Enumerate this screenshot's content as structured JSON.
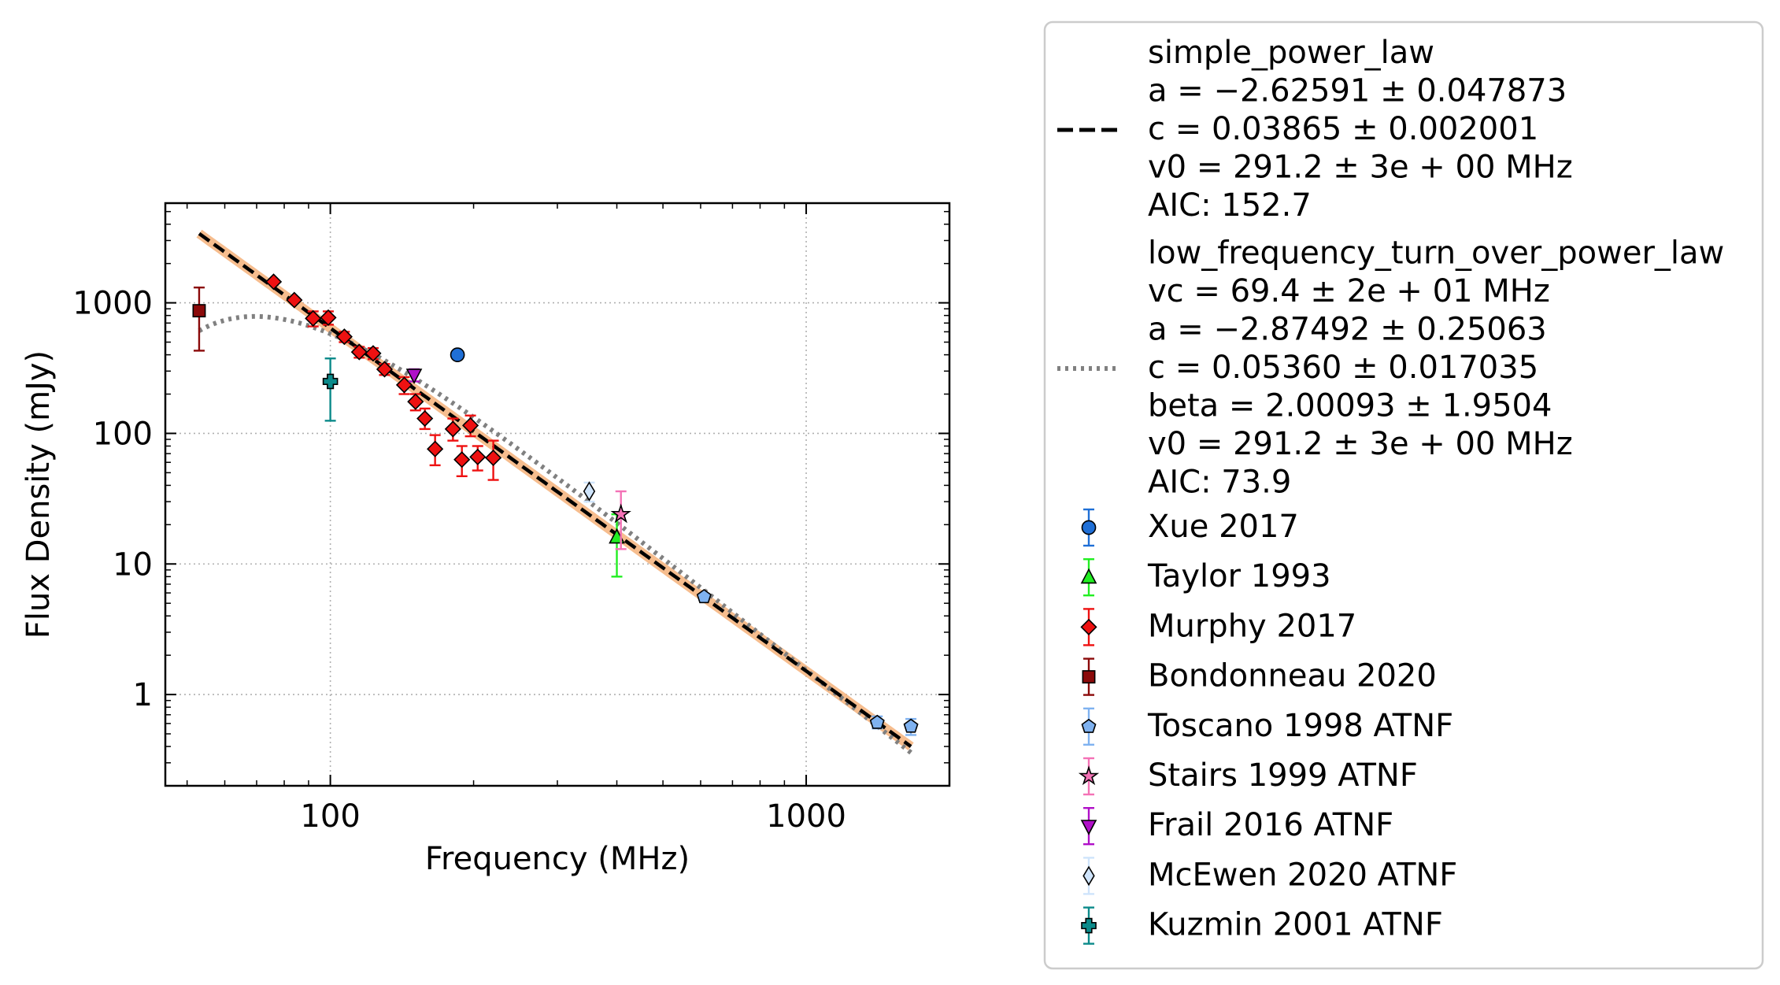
{
  "chart_data": {
    "type": "scatter",
    "xlabel": "Frequency (MHz)",
    "ylabel": "Flux Density (mJy)",
    "xscale": "log",
    "yscale": "log",
    "xlim": [
      45,
      2000
    ],
    "ylim": [
      0.2,
      5800
    ],
    "x_ticks": [
      {
        "value": 100,
        "label": "100"
      },
      {
        "value": 1000,
        "label": "1000"
      }
    ],
    "y_ticks": [
      {
        "value": 1,
        "label": "1"
      },
      {
        "value": 10,
        "label": "10"
      },
      {
        "value": 100,
        "label": "100"
      },
      {
        "value": 1000,
        "label": "1000"
      }
    ],
    "grid": true,
    "legend_position": "outside-right",
    "fits": [
      {
        "id": "simple_power_law",
        "style": "dashed",
        "color": "#000000",
        "band_color": "#f5b27a",
        "lines": [
          "simple_power_law",
          "a = −2.62591 ± 0.047873",
          "c = 0.03865 ± 0.002001",
          "v0 = 291.2 ± 3e + 00 MHz",
          "AIC: 152.7"
        ],
        "params": {
          "a": -2.62591,
          "c": 0.03865,
          "v0": 291.2
        }
      },
      {
        "id": "low_frequency_turn_over_power_law",
        "style": "dotted",
        "color": "#808080",
        "lines": [
          "low_frequency_turn_over_power_law",
          "vc = 69.4 ± 2e + 01 MHz",
          "a = −2.87492 ± 0.25063",
          "c = 0.05360 ± 0.017035",
          "beta = 2.00093 ± 1.9504",
          "v0 = 291.2 ± 3e + 00 MHz",
          "AIC: 73.9"
        ],
        "params": {
          "vc": 69.4,
          "a": -2.87492,
          "c": 0.0536,
          "beta": 2.00093,
          "v0": 291.2
        }
      }
    ],
    "series": [
      {
        "name": "Xue 2017",
        "marker": "circle",
        "color": "#1f6fd6",
        "err_color": "#1f6fd6",
        "points": [
          {
            "x": 185,
            "y": 400,
            "lo": 400,
            "hi": 400
          }
        ]
      },
      {
        "name": "Taylor 1993",
        "marker": "triangle-up",
        "color": "#22ee22",
        "err_color": "#22ee22",
        "points": [
          {
            "x": 400,
            "y": 16,
            "lo": 8,
            "hi": 24
          }
        ]
      },
      {
        "name": "Murphy 2017",
        "marker": "diamond",
        "color": "#ee1111",
        "err_color": "#ee1111",
        "points": [
          {
            "x": 76,
            "y": 1450,
            "lo": 1450,
            "hi": 1450
          },
          {
            "x": 84,
            "y": 1050,
            "lo": 1050,
            "hi": 1050
          },
          {
            "x": 92,
            "y": 760,
            "lo": 660,
            "hi": 860
          },
          {
            "x": 99,
            "y": 770,
            "lo": 680,
            "hi": 860
          },
          {
            "x": 107,
            "y": 550,
            "lo": 500,
            "hi": 600
          },
          {
            "x": 115,
            "y": 420,
            "lo": 380,
            "hi": 460
          },
          {
            "x": 123,
            "y": 410,
            "lo": 370,
            "hi": 450
          },
          {
            "x": 130,
            "y": 310,
            "lo": 280,
            "hi": 340
          },
          {
            "x": 143,
            "y": 235,
            "lo": 200,
            "hi": 270
          },
          {
            "x": 151,
            "y": 175,
            "lo": 150,
            "hi": 200
          },
          {
            "x": 158,
            "y": 130,
            "lo": 108,
            "hi": 155
          },
          {
            "x": 166,
            "y": 76,
            "lo": 57,
            "hi": 97
          },
          {
            "x": 181,
            "y": 108,
            "lo": 88,
            "hi": 130
          },
          {
            "x": 189,
            "y": 63,
            "lo": 47,
            "hi": 80
          },
          {
            "x": 197,
            "y": 115,
            "lo": 95,
            "hi": 137
          },
          {
            "x": 204,
            "y": 66,
            "lo": 52,
            "hi": 80
          },
          {
            "x": 220,
            "y": 65,
            "lo": 44,
            "hi": 88
          }
        ]
      },
      {
        "name": "Bondonneau 2020",
        "marker": "square",
        "color": "#8b0a0a",
        "err_color": "#8b0a0a",
        "points": [
          {
            "x": 53,
            "y": 870,
            "lo": 430,
            "hi": 1310
          }
        ]
      },
      {
        "name": "Toscano 1998 ATNF",
        "marker": "pentagon",
        "color": "#7fb2f0",
        "err_color": "#7fb2f0",
        "points": [
          {
            "x": 610,
            "y": 5.6,
            "lo": 5.3,
            "hi": 5.9
          },
          {
            "x": 1410,
            "y": 0.61,
            "lo": 0.55,
            "hi": 0.68
          },
          {
            "x": 1660,
            "y": 0.57,
            "lo": 0.49,
            "hi": 0.65
          }
        ]
      },
      {
        "name": "Stairs 1999 ATNF",
        "marker": "star",
        "color": "#f472b6",
        "err_color": "#f472b6",
        "points": [
          {
            "x": 408,
            "y": 24,
            "lo": 13,
            "hi": 36
          }
        ]
      },
      {
        "name": "Frail 2016 ATNF",
        "marker": "triangle-down",
        "color": "#b010c8",
        "err_color": "#b010c8",
        "points": [
          {
            "x": 150,
            "y": 280,
            "lo": 250,
            "hi": 310
          }
        ]
      },
      {
        "name": "McEwen 2020 ATNF",
        "marker": "thin-diamond",
        "color": "#cfe4fb",
        "err_color": "#cfe4fb",
        "points": [
          {
            "x": 350,
            "y": 36,
            "lo": 30,
            "hi": 42
          }
        ]
      },
      {
        "name": "Kuzmin 2001 ATNF",
        "marker": "plus",
        "color": "#0b8a8a",
        "err_color": "#0b8a8a",
        "points": [
          {
            "x": 100,
            "y": 250,
            "lo": 125,
            "hi": 375
          }
        ]
      }
    ]
  }
}
